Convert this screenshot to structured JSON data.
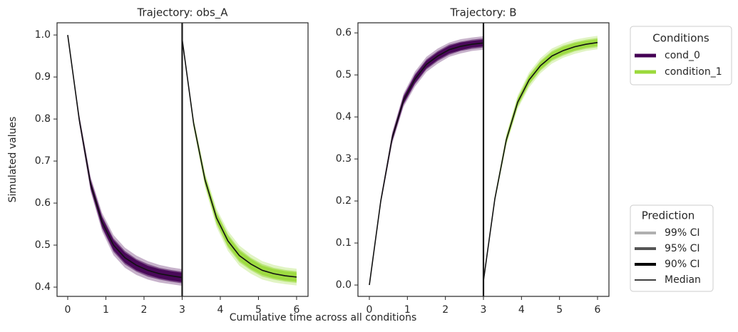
{
  "figure": {
    "xlabel": "Cumulative time across all conditions",
    "ylabel": "Simulated values"
  },
  "legends": {
    "conditions_title": "Conditions",
    "prediction": {
      "title": "Prediction",
      "items": [
        {
          "name": "99% CI",
          "color": "#b0b0b0",
          "width": 4
        },
        {
          "name": "95% CI",
          "color": "#555555",
          "width": 4
        },
        {
          "name": "90% CI",
          "color": "#000000",
          "width": 4
        },
        {
          "name": "Median",
          "color": "#000000",
          "width": 1.5
        }
      ]
    }
  },
  "chart_data": [
    {
      "type": "line",
      "title": "Trajectory: obs_A",
      "xlim": [
        -0.28,
        6.3
      ],
      "ylim": [
        0.378,
        1.029
      ],
      "xticks": [
        0,
        1,
        2,
        3,
        4,
        5,
        6
      ],
      "yticks": [
        0.4,
        0.5,
        0.6,
        0.7,
        0.8,
        0.9,
        {
          "value": 1.0,
          "label": "1.0"
        }
      ],
      "vline": 3,
      "median_color": "#111111",
      "series": [
        {
          "name": "cond_0",
          "color": "#440154",
          "x": [
            0,
            0.3,
            0.6,
            0.9,
            1.2,
            1.5,
            1.8,
            2.1,
            2.4,
            2.7,
            3
          ],
          "values": [
            1.0,
            0.8,
            0.645,
            0.555,
            0.5,
            0.47,
            0.452,
            0.44,
            0.432,
            0.427,
            0.423
          ],
          "bands": [
            {
              "name": "99% CI",
              "opacity": 0.3,
              "lower": [
                1.0,
                0.788,
                0.627,
                0.533,
                0.476,
                0.446,
                0.429,
                0.418,
                0.411,
                0.407,
                0.403
              ],
              "upper": [
                1.0,
                0.812,
                0.663,
                0.577,
                0.524,
                0.494,
                0.475,
                0.462,
                0.453,
                0.447,
                0.443
              ]
            },
            {
              "name": "95% CI",
              "opacity": 0.55,
              "lower": [
                1.0,
                0.792,
                0.633,
                0.54,
                0.484,
                0.454,
                0.437,
                0.425,
                0.418,
                0.413,
                0.409
              ],
              "upper": [
                1.0,
                0.808,
                0.657,
                0.57,
                0.516,
                0.486,
                0.467,
                0.455,
                0.446,
                0.441,
                0.437
              ]
            },
            {
              "name": "90% CI",
              "opacity": 0.9,
              "lower": [
                1.0,
                0.794,
                0.636,
                0.544,
                0.488,
                0.458,
                0.44,
                0.429,
                0.421,
                0.416,
                0.412
              ],
              "upper": [
                1.0,
                0.806,
                0.654,
                0.566,
                0.512,
                0.482,
                0.464,
                0.451,
                0.443,
                0.438,
                0.434
              ]
            }
          ]
        },
        {
          "name": "condition_1",
          "color": "#9bd93c",
          "x": [
            3,
            3.3,
            3.6,
            3.9,
            4.2,
            4.5,
            4.8,
            5.1,
            5.4,
            5.7,
            6
          ],
          "values": [
            0.99,
            0.79,
            0.655,
            0.565,
            0.51,
            0.475,
            0.455,
            0.44,
            0.432,
            0.427,
            0.424
          ],
          "bands": [
            {
              "name": "99% CI",
              "opacity": 0.3,
              "lower": [
                0.99,
                0.778,
                0.637,
                0.543,
                0.486,
                0.451,
                0.432,
                0.418,
                0.411,
                0.407,
                0.404
              ],
              "upper": [
                0.99,
                0.802,
                0.673,
                0.587,
                0.534,
                0.499,
                0.478,
                0.462,
                0.453,
                0.447,
                0.444
              ]
            },
            {
              "name": "95% CI",
              "opacity": 0.55,
              "lower": [
                0.99,
                0.782,
                0.643,
                0.55,
                0.494,
                0.459,
                0.44,
                0.425,
                0.418,
                0.413,
                0.41
              ],
              "upper": [
                0.99,
                0.798,
                0.667,
                0.58,
                0.526,
                0.491,
                0.47,
                0.455,
                0.446,
                0.441,
                0.438
              ]
            },
            {
              "name": "90% CI",
              "opacity": 0.9,
              "lower": [
                0.99,
                0.784,
                0.646,
                0.554,
                0.498,
                0.463,
                0.443,
                0.429,
                0.421,
                0.416,
                0.413
              ],
              "upper": [
                0.99,
                0.796,
                0.664,
                0.576,
                0.522,
                0.487,
                0.467,
                0.451,
                0.443,
                0.438,
                0.435
              ]
            }
          ]
        }
      ]
    },
    {
      "type": "line",
      "title": "Trajectory: B",
      "xlim": [
        -0.3,
        6.3
      ],
      "ylim": [
        -0.027,
        0.624
      ],
      "xticks": [
        0,
        1,
        2,
        3,
        4,
        5,
        6
      ],
      "yticks": [
        {
          "value": 0,
          "label": "0.0"
        },
        0.1,
        0.2,
        0.3,
        0.4,
        0.5,
        0.6
      ],
      "vline": 3,
      "median_color": "#111111",
      "series": [
        {
          "name": "cond_0",
          "color": "#440154",
          "x": [
            0,
            0.3,
            0.6,
            0.9,
            1.2,
            1.5,
            1.8,
            2.1,
            2.4,
            2.7,
            3
          ],
          "values": [
            0,
            0.2,
            0.35,
            0.44,
            0.49,
            0.525,
            0.545,
            0.56,
            0.568,
            0.573,
            0.576
          ],
          "bands": [
            {
              "name": "99% CI",
              "opacity": 0.3,
              "lower": [
                0,
                0.192,
                0.336,
                0.424,
                0.472,
                0.507,
                0.527,
                0.543,
                0.551,
                0.557,
                0.56
              ],
              "upper": [
                0,
                0.208,
                0.364,
                0.456,
                0.508,
                0.543,
                0.563,
                0.577,
                0.585,
                0.589,
                0.592
              ]
            },
            {
              "name": "95% CI",
              "opacity": 0.55,
              "lower": [
                0,
                0.195,
                0.341,
                0.429,
                0.478,
                0.513,
                0.533,
                0.548,
                0.557,
                0.562,
                0.565
              ],
              "upper": [
                0,
                0.205,
                0.359,
                0.451,
                0.502,
                0.537,
                0.557,
                0.572,
                0.579,
                0.584,
                0.587
              ]
            },
            {
              "name": "90% CI",
              "opacity": 0.9,
              "lower": [
                0,
                0.196,
                0.343,
                0.432,
                0.481,
                0.516,
                0.536,
                0.551,
                0.559,
                0.565,
                0.568
              ],
              "upper": [
                0,
                0.204,
                0.357,
                0.448,
                0.499,
                0.534,
                0.554,
                0.569,
                0.577,
                0.581,
                0.584
              ]
            }
          ]
        },
        {
          "name": "condition_1",
          "color": "#9bd93c",
          "x": [
            3,
            3.3,
            3.6,
            3.9,
            4.2,
            4.5,
            4.8,
            5.1,
            5.4,
            5.7,
            6
          ],
          "values": [
            0.01,
            0.205,
            0.345,
            0.435,
            0.488,
            0.522,
            0.545,
            0.558,
            0.567,
            0.573,
            0.577
          ],
          "bands": [
            {
              "name": "99% CI",
              "opacity": 0.3,
              "lower": [
                0.01,
                0.197,
                0.331,
                0.419,
                0.47,
                0.504,
                0.527,
                0.541,
                0.55,
                0.557,
                0.561
              ],
              "upper": [
                0.01,
                0.213,
                0.359,
                0.451,
                0.506,
                0.54,
                0.563,
                0.575,
                0.584,
                0.589,
                0.593
              ]
            },
            {
              "name": "95% CI",
              "opacity": 0.55,
              "lower": [
                0.01,
                0.2,
                0.336,
                0.424,
                0.476,
                0.51,
                0.533,
                0.546,
                0.556,
                0.562,
                0.566
              ],
              "upper": [
                0.01,
                0.21,
                0.354,
                0.446,
                0.5,
                0.534,
                0.557,
                0.57,
                0.578,
                0.584,
                0.588
              ]
            },
            {
              "name": "90% CI",
              "opacity": 0.9,
              "lower": [
                0.01,
                0.201,
                0.338,
                0.427,
                0.479,
                0.513,
                0.536,
                0.549,
                0.558,
                0.565,
                0.569
              ],
              "upper": [
                0.01,
                0.209,
                0.352,
                0.443,
                0.497,
                0.531,
                0.554,
                0.567,
                0.576,
                0.581,
                0.585
              ]
            }
          ]
        }
      ]
    }
  ]
}
